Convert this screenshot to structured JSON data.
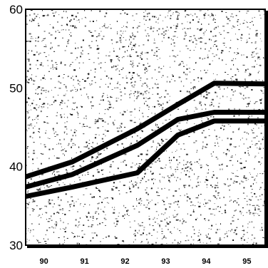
{
  "chart_data": {
    "type": "line",
    "title": "",
    "xlabel": "",
    "ylabel": "",
    "categories": [
      "90",
      "91",
      "92",
      "93",
      "94",
      "95"
    ],
    "xlim": [
      89.55,
      95.45
    ],
    "ylim": [
      30,
      60
    ],
    "yticks": [
      30,
      40,
      50,
      60
    ],
    "grid": false,
    "legend": "none",
    "series": [
      {
        "x": [
          89.55,
          90.7,
          92.3,
          93.3,
          94.2,
          95.45
        ],
        "values": [
          38.7,
          40.6,
          44.8,
          47.9,
          50.6,
          50.5
        ]
      },
      {
        "x": [
          89.55,
          90.7,
          92.3,
          93.3,
          94.2,
          95.45
        ],
        "values": [
          37.4,
          39.0,
          42.7,
          46.0,
          46.9,
          46.9
        ]
      },
      {
        "x": [
          89.55,
          90.7,
          92.3,
          93.3,
          94.2,
          95.45
        ],
        "values": [
          36.2,
          37.4,
          39.2,
          44.0,
          45.8,
          45.8
        ]
      }
    ],
    "colors": {
      "line": "#000000",
      "background": "#ffffff",
      "stipple": "#000000"
    }
  }
}
